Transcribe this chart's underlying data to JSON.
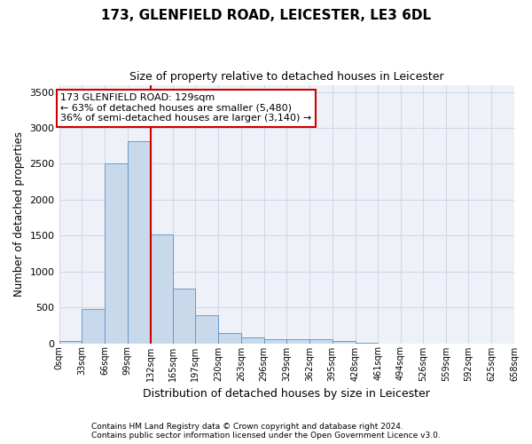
{
  "title1": "173, GLENFIELD ROAD, LEICESTER, LE3 6DL",
  "title2": "Size of property relative to detached houses in Leicester",
  "xlabel": "Distribution of detached houses by size in Leicester",
  "ylabel": "Number of detached properties",
  "footnote1": "Contains HM Land Registry data © Crown copyright and database right 2024.",
  "footnote2": "Contains public sector information licensed under the Open Government Licence v3.0.",
  "annotation_line1": "173 GLENFIELD ROAD: 129sqm",
  "annotation_line2": "← 63% of detached houses are smaller (5,480)",
  "annotation_line3": "36% of semi-detached houses are larger (3,140) →",
  "bar_color": "#c9d9ec",
  "bar_edge_color": "#5b8fc9",
  "grid_color": "#d0d8e8",
  "background_color": "#eef2f8",
  "redline_color": "#cc0000",
  "bin_edges": [
    0,
    33,
    66,
    99,
    132,
    165,
    197,
    230,
    263,
    296,
    329,
    362,
    395,
    428,
    461,
    494,
    526,
    559,
    592,
    625,
    658
  ],
  "bar_heights": [
    25,
    475,
    2510,
    2820,
    1520,
    755,
    385,
    145,
    75,
    55,
    55,
    55,
    30,
    10,
    0,
    0,
    0,
    0,
    0,
    0
  ],
  "property_size": 129,
  "redline_x": 132,
  "ylim": [
    0,
    3600
  ],
  "yticks": [
    0,
    500,
    1000,
    1500,
    2000,
    2500,
    3000,
    3500
  ],
  "xtick_labels": [
    "0sqm",
    "33sqm",
    "66sqm",
    "99sqm",
    "132sqm",
    "165sqm",
    "197sqm",
    "230sqm",
    "263sqm",
    "296sqm",
    "329sqm",
    "362sqm",
    "395sqm",
    "428sqm",
    "461sqm",
    "494sqm",
    "526sqm",
    "559sqm",
    "592sqm",
    "625sqm",
    "658sqm"
  ]
}
